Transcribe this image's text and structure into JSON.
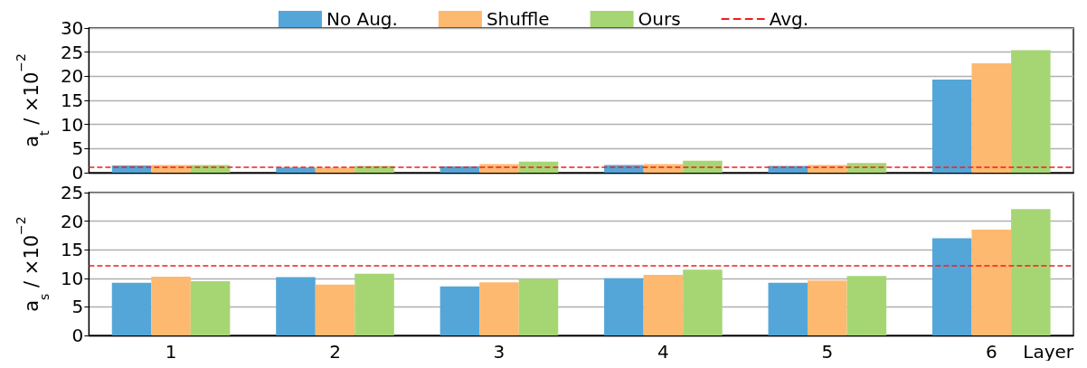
{
  "chart_data": [
    {
      "type": "bar",
      "ylabel": "a$_{t}$ / ×10$^{−2}$",
      "categories": [
        "1",
        "2",
        "3",
        "4",
        "5",
        "6"
      ],
      "series": [
        {
          "name": "No Aug.",
          "color": "#54a6d8",
          "values": [
            1.5,
            1.1,
            1.3,
            1.6,
            1.4,
            19.3
          ]
        },
        {
          "name": "Shuffle",
          "color": "#fdb96f",
          "values": [
            1.6,
            1.1,
            1.8,
            1.8,
            1.6,
            22.7
          ]
        },
        {
          "name": "Ours",
          "color": "#a6d674",
          "values": [
            1.6,
            1.4,
            2.3,
            2.5,
            2.0,
            25.4
          ]
        }
      ],
      "ref_lines": [
        {
          "axis": "y",
          "value": 1.2,
          "label": "Avg.",
          "color": "#f01e1e",
          "line_style": "dashed"
        }
      ],
      "ylim": [
        0,
        30
      ],
      "yticks": [
        0,
        5,
        10,
        15,
        20,
        25,
        30
      ],
      "grid": "y",
      "legend": "top",
      "tick_labels": "y"
    },
    {
      "type": "bar",
      "ylabel": "a$_{s}$ / ×10$^{−2}$",
      "xlabel": "Layer",
      "categories": [
        "1",
        "2",
        "3",
        "4",
        "5",
        "6"
      ],
      "series": [
        {
          "color": "#54a6d8",
          "values": [
            9.2,
            10.2,
            8.6,
            10.0,
            9.2,
            17.0
          ]
        },
        {
          "color": "#fdb96f",
          "values": [
            10.3,
            8.9,
            9.3,
            10.6,
            9.6,
            18.5
          ]
        },
        {
          "color": "#a6d674",
          "values": [
            9.5,
            10.8,
            9.9,
            11.5,
            10.4,
            22.1
          ]
        }
      ],
      "ref_lines": [
        {
          "axis": "y",
          "value": 12.2,
          "color": "#f01e1e",
          "line_style": "dashed"
        }
      ],
      "ylim": [
        0,
        25
      ],
      "yticks": [
        0,
        5,
        10,
        15,
        20,
        25
      ],
      "grid": "y"
    }
  ]
}
